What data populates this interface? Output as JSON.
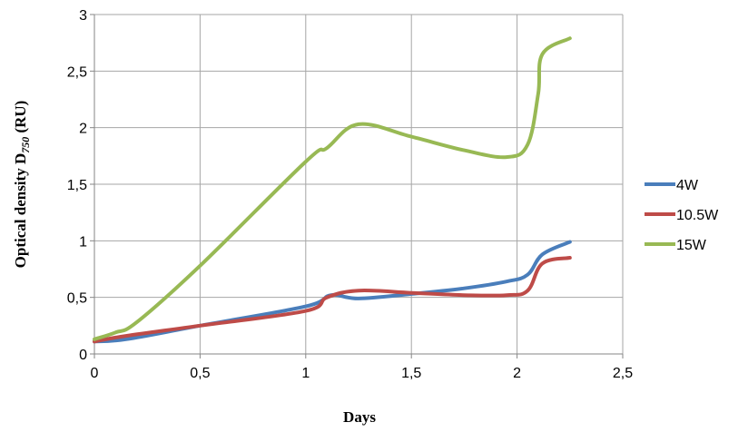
{
  "chart_data": {
    "type": "line",
    "xlabel": "Days",
    "ylabel": {
      "prefix": "Optical density D",
      "subscript": "750",
      "suffix": " (RU)"
    },
    "xlim": [
      0,
      2.5
    ],
    "ylim": [
      0,
      3
    ],
    "x_ticks": [
      {
        "value": 0,
        "label": "0"
      },
      {
        "value": 0.5,
        "label": "0,5"
      },
      {
        "value": 1,
        "label": "1"
      },
      {
        "value": 1.5,
        "label": "1,5"
      },
      {
        "value": 2,
        "label": "2"
      },
      {
        "value": 2.5,
        "label": "2,5"
      }
    ],
    "y_ticks": [
      {
        "value": 0,
        "label": "0"
      },
      {
        "value": 0.5,
        "label": "0,5"
      },
      {
        "value": 1,
        "label": "1"
      },
      {
        "value": 1.5,
        "label": "1,5"
      },
      {
        "value": 2,
        "label": "2"
      },
      {
        "value": 2.5,
        "label": "2,5"
      },
      {
        "value": 3,
        "label": "3"
      }
    ],
    "grid": true,
    "legend_position": "right",
    "series": [
      {
        "name": "4W",
        "color": "#4a7ebb",
        "points": [
          [
            0,
            0.11
          ],
          [
            0.15,
            0.13
          ],
          [
            0.5,
            0.25
          ],
          [
            1.0,
            0.42
          ],
          [
            1.12,
            0.52
          ],
          [
            1.25,
            0.49
          ],
          [
            1.5,
            0.53
          ],
          [
            1.75,
            0.58
          ],
          [
            1.95,
            0.64
          ],
          [
            2.05,
            0.7
          ],
          [
            2.12,
            0.88
          ],
          [
            2.25,
            0.99
          ]
        ]
      },
      {
        "name": "10.5W",
        "color": "#be4b48",
        "points": [
          [
            0,
            0.11
          ],
          [
            0.15,
            0.16
          ],
          [
            0.5,
            0.25
          ],
          [
            1.0,
            0.38
          ],
          [
            1.1,
            0.5
          ],
          [
            1.25,
            0.56
          ],
          [
            1.5,
            0.54
          ],
          [
            1.75,
            0.52
          ],
          [
            1.95,
            0.52
          ],
          [
            2.05,
            0.56
          ],
          [
            2.12,
            0.8
          ],
          [
            2.25,
            0.85
          ]
        ]
      },
      {
        "name": "15W",
        "color": "#98b954",
        "points": [
          [
            0,
            0.13
          ],
          [
            0.1,
            0.19
          ],
          [
            0.2,
            0.28
          ],
          [
            0.5,
            0.78
          ],
          [
            1.0,
            1.7
          ],
          [
            1.1,
            1.82
          ],
          [
            1.25,
            2.03
          ],
          [
            1.5,
            1.92
          ],
          [
            1.75,
            1.8
          ],
          [
            1.95,
            1.74
          ],
          [
            2.05,
            1.85
          ],
          [
            2.1,
            2.3
          ],
          [
            2.12,
            2.65
          ],
          [
            2.25,
            2.79
          ]
        ]
      }
    ]
  }
}
